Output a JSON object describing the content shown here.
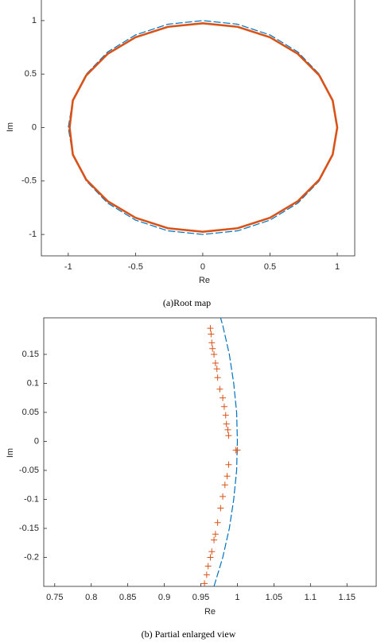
{
  "chart_data": [
    {
      "type": "line",
      "caption": "(a)Root map",
      "xlabel": "Re",
      "ylabel": "Im",
      "xlim": [
        -1.2,
        1.13
      ],
      "ylim": [
        -1.2,
        1.2
      ],
      "xticks": [
        -1,
        -0.5,
        0,
        0.5,
        1
      ],
      "yticks": [
        -1,
        -0.5,
        0,
        0.5,
        1
      ],
      "series": [
        {
          "color": "#0072bd",
          "line_style": "dashed",
          "x": [
            1,
            0.966,
            0.866,
            0.707,
            0.5,
            0.259,
            0,
            -0.259,
            -0.5,
            -0.707,
            -0.866,
            -0.966,
            -1,
            -0.966,
            -0.866,
            -0.707,
            -0.5,
            -0.259,
            0,
            0.259,
            0.5,
            0.707,
            0.866,
            0.966
          ],
          "values": [
            0,
            0.259,
            0.5,
            0.707,
            0.866,
            0.966,
            1,
            0.966,
            0.866,
            0.707,
            0.5,
            0.259,
            0,
            -0.259,
            -0.5,
            -0.707,
            -0.866,
            -0.966,
            -1,
            -0.966,
            -0.866,
            -0.707,
            -0.5,
            -0.259
          ]
        },
        {
          "color": "#d95319",
          "line_style": "solid",
          "x": [
            1,
            0.966,
            0.866,
            0.707,
            0.5,
            0.259,
            0,
            -0.259,
            -0.5,
            -0.707,
            -0.866,
            -0.966,
            -0.99,
            -0.966,
            -0.866,
            -0.707,
            -0.5,
            -0.259,
            0,
            0.259,
            0.5,
            0.707,
            0.866,
            0.966
          ],
          "values": [
            0,
            0.253,
            0.488,
            0.689,
            0.844,
            0.942,
            0.975,
            0.942,
            0.844,
            0.689,
            0.488,
            0.253,
            0,
            -0.253,
            -0.488,
            -0.689,
            -0.844,
            -0.942,
            -0.975,
            -0.942,
            -0.844,
            -0.689,
            -0.488,
            -0.253
          ]
        }
      ]
    },
    {
      "type": "line",
      "caption": "(b) Partial enlarged view",
      "xlabel": "Re",
      "ylabel": "Im",
      "xlim": [
        0.735,
        1.19
      ],
      "ylim": [
        -0.25,
        0.213
      ],
      "xticks": [
        0.75,
        0.8,
        0.85,
        0.9,
        0.95,
        1,
        1.05,
        1.1,
        1.15
      ],
      "yticks": [
        -0.2,
        -0.15,
        -0.1,
        -0.05,
        0,
        0.05,
        0.1,
        0.15
      ],
      "series": [
        {
          "color": "#0072bd",
          "line_style": "dashed",
          "x": [
            0.968,
            0.98,
            0.989,
            0.995,
            0.999,
            1,
            0.999,
            0.995,
            0.989,
            0.98,
            0.977
          ],
          "values": [
            -0.25,
            -0.2,
            -0.15,
            -0.1,
            -0.05,
            0,
            0.05,
            0.1,
            0.15,
            0.2,
            0.213
          ]
        },
        {
          "color": "#d95319",
          "line_style": "none",
          "marker": "+",
          "x": [
            0.963,
            0.964,
            0.965,
            0.966,
            0.968,
            0.97,
            0.972,
            0.973,
            0.976,
            0.98,
            0.982,
            0.984,
            0.985,
            0.987,
            0.988,
            0.998,
            1,
            0.988,
            0.986,
            0.983,
            0.98,
            0.977,
            0.973,
            0.97,
            0.968,
            0.965,
            0.963,
            0.96,
            0.958,
            0.955
          ],
          "values": [
            0.195,
            0.185,
            0.17,
            0.16,
            0.15,
            0.135,
            0.125,
            0.11,
            0.09,
            0.075,
            0.06,
            0.045,
            0.03,
            0.02,
            0.01,
            -0.015,
            -0.015,
            -0.04,
            -0.06,
            -0.075,
            -0.095,
            -0.115,
            -0.14,
            -0.16,
            -0.17,
            -0.19,
            -0.2,
            -0.215,
            -0.23,
            -0.245
          ]
        }
      ]
    }
  ]
}
